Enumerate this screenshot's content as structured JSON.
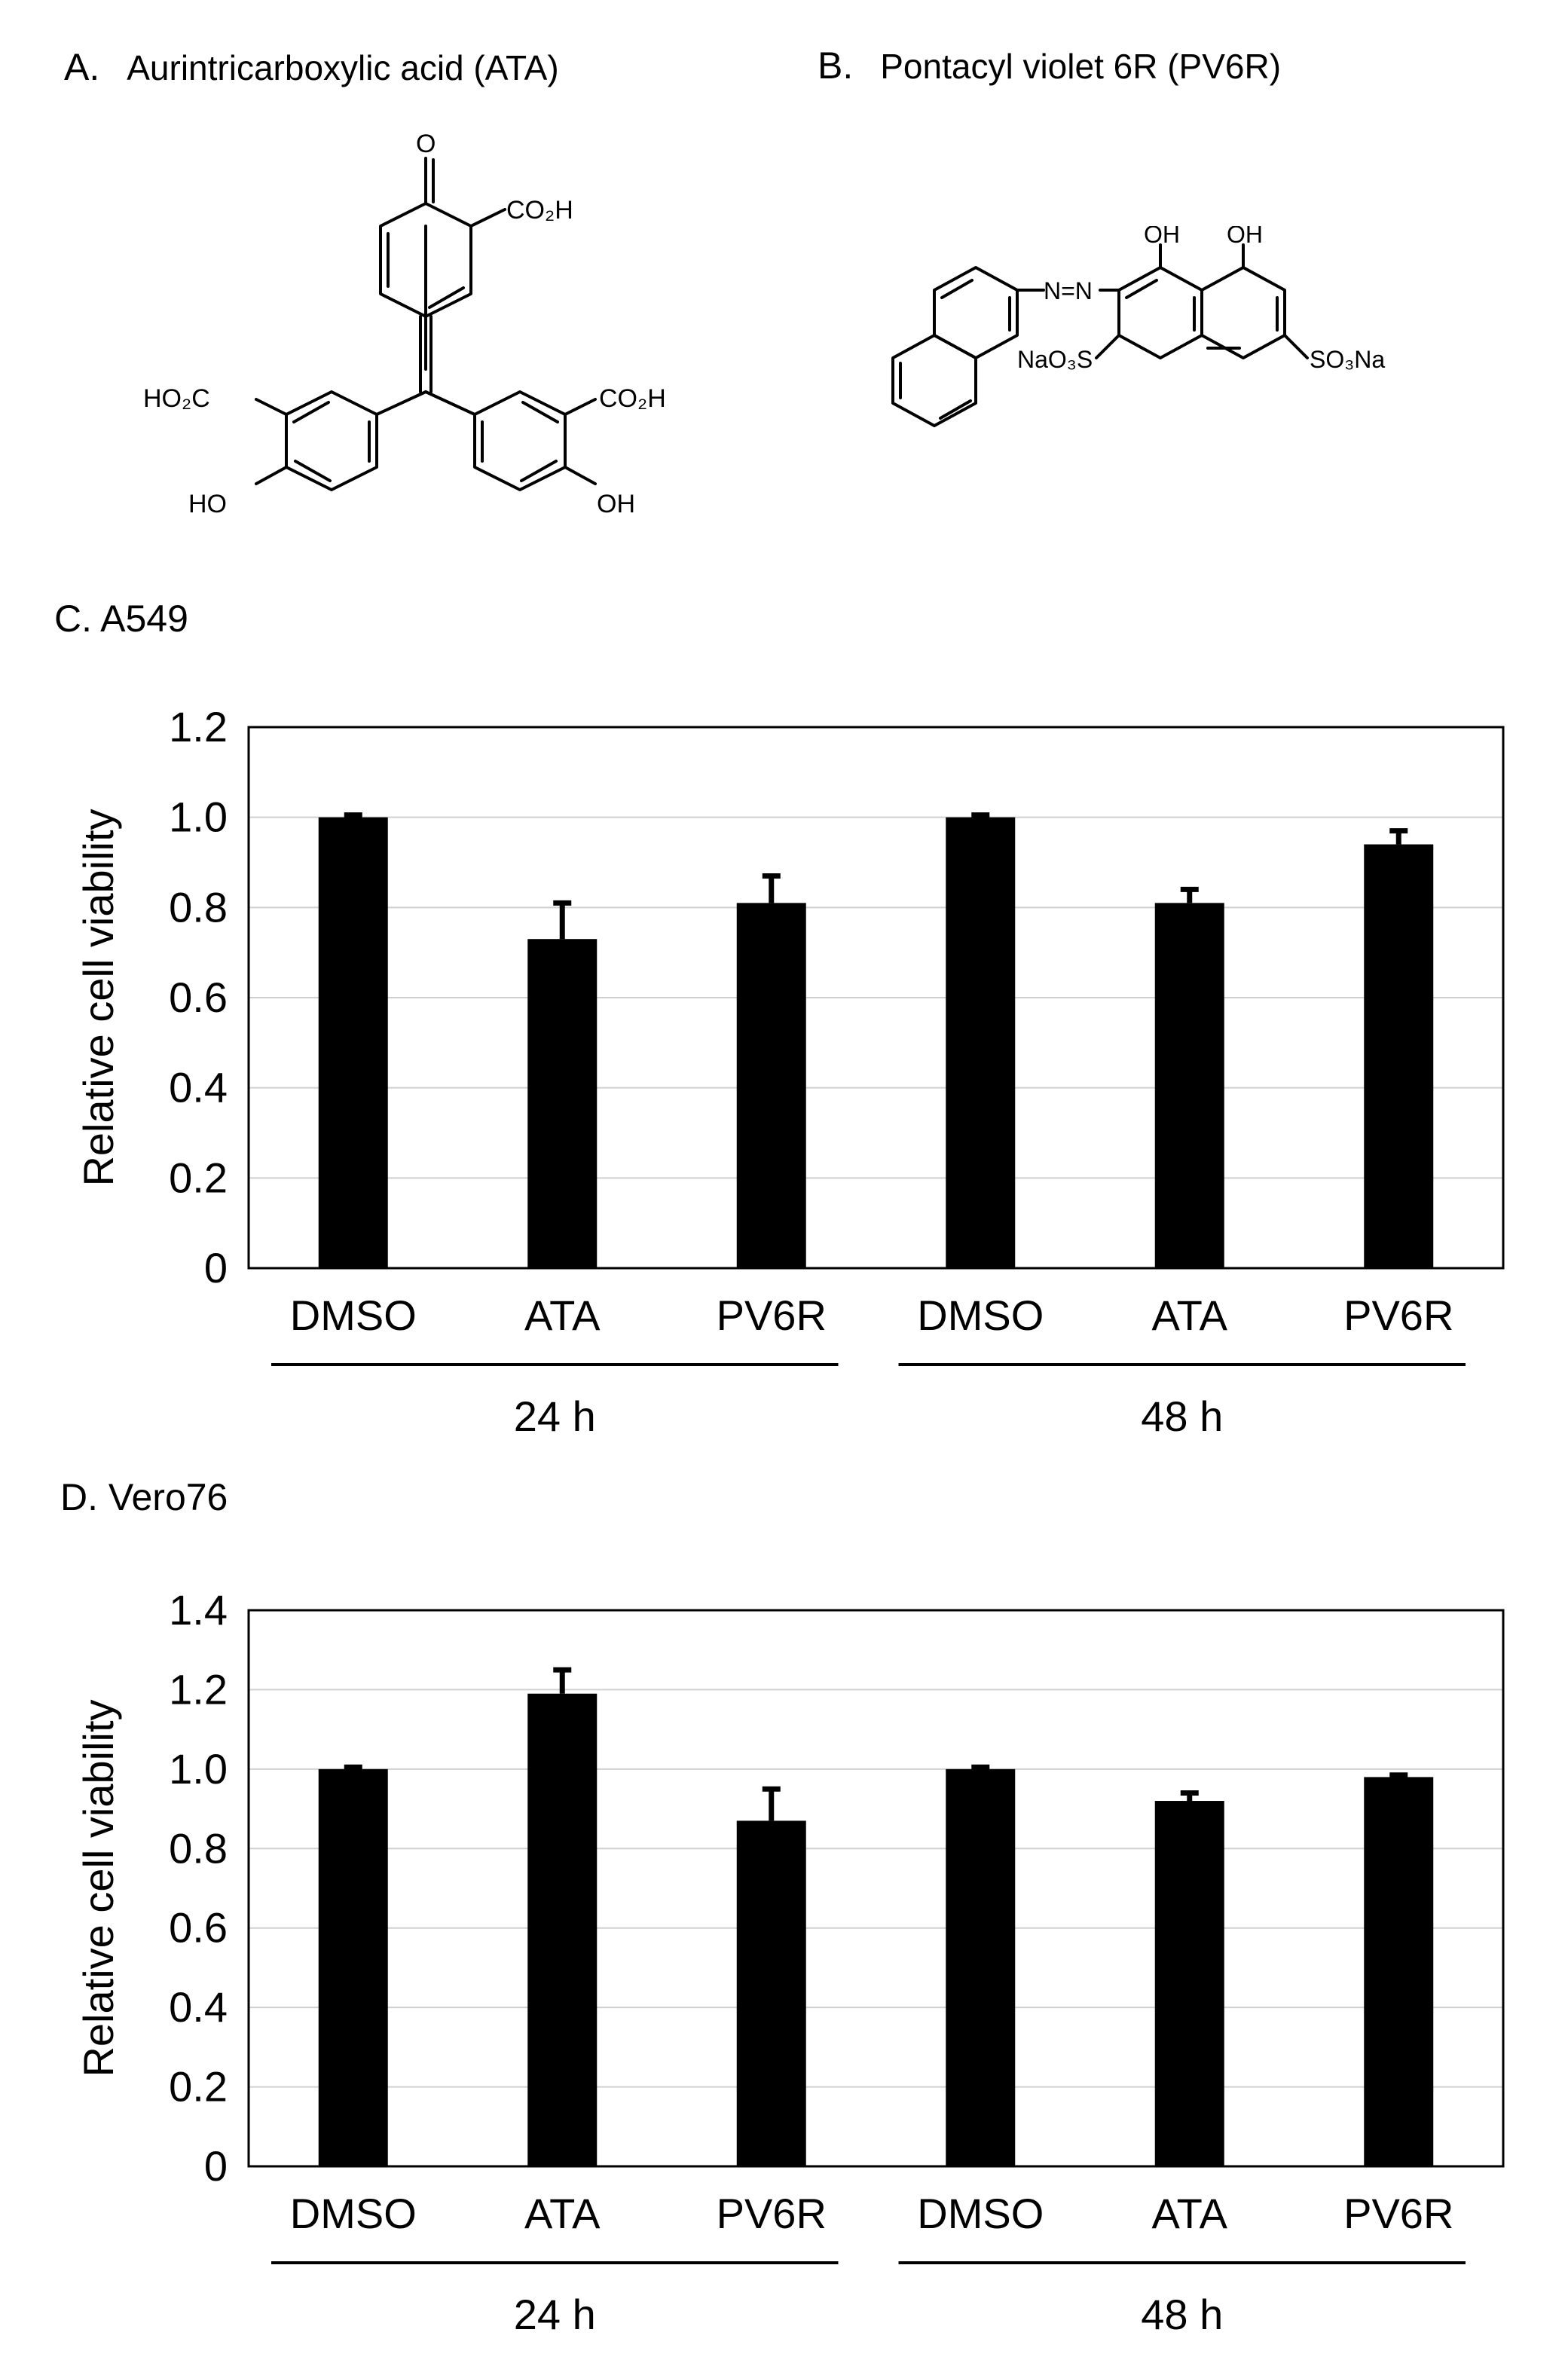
{
  "panels": {
    "a": {
      "letter": "A.",
      "title": "Aurintricarboxylic  acid (ATA)"
    },
    "b": {
      "letter": "B.",
      "title": "Pontacyl  violet 6R (PV6R)"
    }
  },
  "structure_a": {
    "o": "O",
    "co2h_top": "CO₂H",
    "ho2c_left": "HO₂C",
    "co2h_right": "CO₂H",
    "ho_left": "HO",
    "oh_right": "OH"
  },
  "structure_b": {
    "oh1": "OH",
    "oh2": "OH",
    "azo": "N=N",
    "naso3s": "NaO₃S",
    "so3na": "SO₃Na"
  },
  "chart_data": [
    {
      "id": "c",
      "type": "bar",
      "title": "C. A549",
      "ylabel": "Relative cell viability",
      "ylim": [
        0,
        1.2
      ],
      "yticks": [
        "0",
        "0.2",
        "0.4",
        "0.6",
        "0.8",
        "1.0",
        "1.2"
      ],
      "categories": [
        "DMSO",
        "ATA",
        "PV6R",
        "DMSO",
        "ATA",
        "PV6R"
      ],
      "values": [
        1.0,
        0.73,
        0.81,
        1.0,
        0.81,
        0.94
      ],
      "errors": [
        0.005,
        0.08,
        0.06,
        0.005,
        0.03,
        0.03
      ],
      "groups": [
        {
          "label": "24 h",
          "size": 3
        },
        {
          "label": "48 h",
          "size": 3
        }
      ],
      "grid": true,
      "bar_color": "#000000"
    },
    {
      "id": "d",
      "type": "bar",
      "title": "D. Vero76",
      "ylabel": "Relative cell viability",
      "ylim": [
        0,
        1.4
      ],
      "yticks": [
        "0",
        "0.2",
        "0.4",
        "0.6",
        "0.8",
        "1.0",
        "1.2",
        "1.4"
      ],
      "categories": [
        "DMSO",
        "ATA",
        "PV6R",
        "DMSO",
        "ATA",
        "PV6R"
      ],
      "values": [
        1.0,
        1.19,
        0.87,
        1.0,
        0.92,
        0.98
      ],
      "errors": [
        0.005,
        0.06,
        0.08,
        0.005,
        0.02,
        0.005
      ],
      "groups": [
        {
          "label": "24 h",
          "size": 3
        },
        {
          "label": "48 h",
          "size": 3
        }
      ],
      "grid": true,
      "bar_color": "#000000"
    }
  ]
}
